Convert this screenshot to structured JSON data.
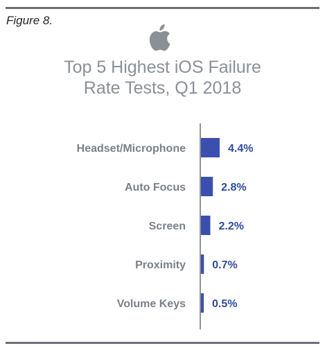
{
  "figure_label": "Figure 8.",
  "logo_icon": "apple-logo-icon",
  "title_lines": [
    "Top 5 Highest iOS Failure",
    "Rate Tests, Q1 2018"
  ],
  "colors": {
    "bar": "#3a50b0",
    "value_text": "#2f4aa6",
    "category_text": "#7a8088",
    "title": "#8a9096",
    "rule": "#6b6f75"
  },
  "chart_data": {
    "type": "bar",
    "orientation": "horizontal",
    "title": "Top 5 Highest iOS Failure Rate Tests, Q1 2018",
    "categories": [
      "Headset/Microphone",
      "Auto Focus",
      "Screen",
      "Proximity",
      "Volume Keys"
    ],
    "values": [
      4.4,
      2.8,
      2.2,
      0.7,
      0.5
    ],
    "value_labels": [
      "4.4%",
      "2.8%",
      "2.2%",
      "0.7%",
      "0.5%"
    ],
    "unit": "%",
    "xlim": [
      0,
      4.4
    ],
    "grid": false,
    "legend": "none"
  }
}
